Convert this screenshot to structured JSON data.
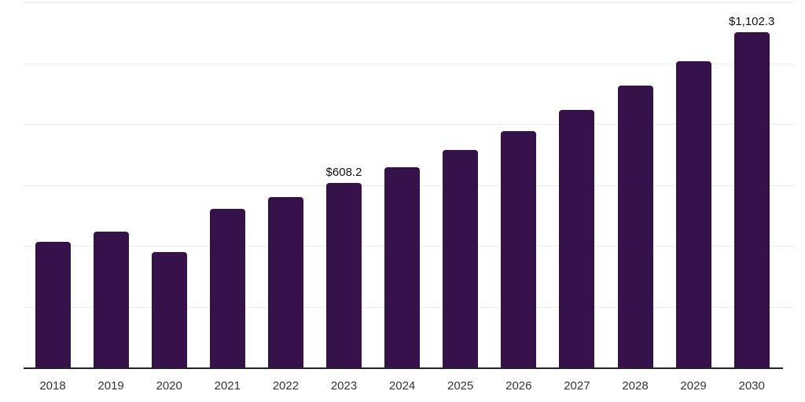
{
  "chart_data": {
    "type": "bar",
    "title": "",
    "xlabel": "",
    "ylabel": "",
    "categories": [
      "2018",
      "2019",
      "2020",
      "2021",
      "2022",
      "2023",
      "2024",
      "2025",
      "2026",
      "2027",
      "2028",
      "2029",
      "2030"
    ],
    "values": [
      415,
      448,
      380,
      522,
      560,
      608.2,
      660,
      715,
      778,
      847,
      926,
      1008,
      1102.3
    ],
    "data_labels": [
      "",
      "",
      "",
      "",
      "",
      "$608.2",
      "",
      "",
      "",
      "",
      "",
      "",
      "$1,102.3"
    ],
    "ylim": [
      0,
      1200
    ],
    "gridline_step": 200,
    "grid": "horizontal-only",
    "y_axis_tick_labels_visible": false,
    "legend": "none",
    "bar_color": "#35124a",
    "gridline_color": "#ececec",
    "axis_line_color": "#232323",
    "value_label_color": "#111111",
    "tick_label_color": "#333333"
  }
}
